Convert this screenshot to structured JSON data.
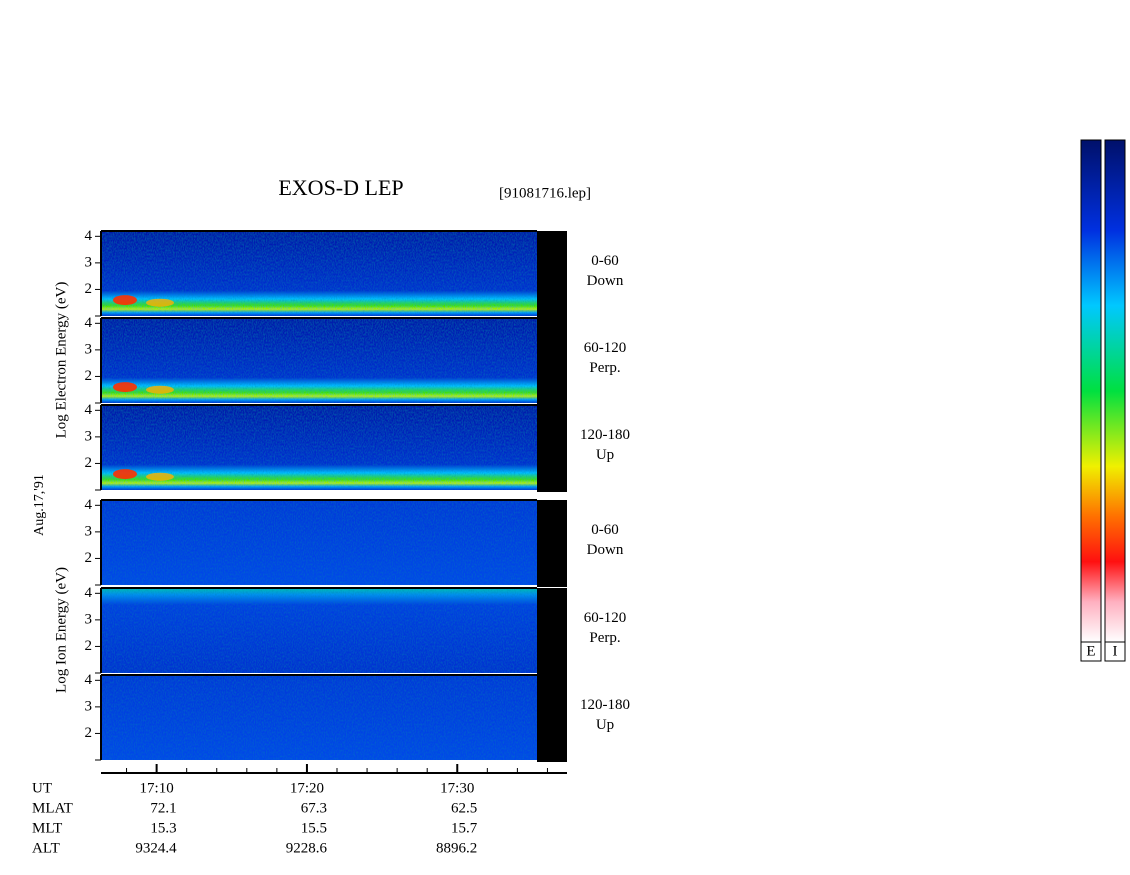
{
  "chart_data": {
    "type": "spectrogram",
    "title": "EXOS-D LEP",
    "file": "[91081716.lep]",
    "date": "Aug.17,'91",
    "electron_label": "Log Electron Energy (eV)",
    "ion_label": "Log Ion Energy (eV)",
    "panels": [
      {
        "angle": "0-60",
        "direction": "Down"
      },
      {
        "angle": "60-120",
        "direction": "Perp."
      },
      {
        "angle": "120-180",
        "direction": "Up"
      },
      {
        "angle": "0-60",
        "direction": "Down"
      },
      {
        "angle": "60-120",
        "direction": "Perp."
      },
      {
        "angle": "120-180",
        "direction": "Up"
      }
    ],
    "ylim": [
      1,
      4.2
    ],
    "yticks": [
      2,
      3,
      4
    ],
    "xlim": [
      1026.3,
      1057.3
    ],
    "xticks": [
      {
        "value": 1030,
        "label": "17:10"
      },
      {
        "value": 1040,
        "label": "17:20"
      },
      {
        "value": 1050,
        "label": "17:30"
      }
    ],
    "xticks_minor": [
      1028,
      1032,
      1034,
      1036,
      1038,
      1042,
      1044,
      1046,
      1048,
      1052,
      1054,
      1056
    ],
    "orbit_label": "UT",
    "orbit": [
      {
        "label": "MLAT",
        "values": [
          72.1,
          67.3,
          62.5
        ]
      },
      {
        "label": "MLT",
        "values": [
          15.3,
          15.5,
          15.7
        ]
      },
      {
        "label": "ALT",
        "values": [
          9324.4,
          9228.6,
          8896.2
        ]
      }
    ],
    "colorbars": [
      "E",
      "I"
    ]
  }
}
